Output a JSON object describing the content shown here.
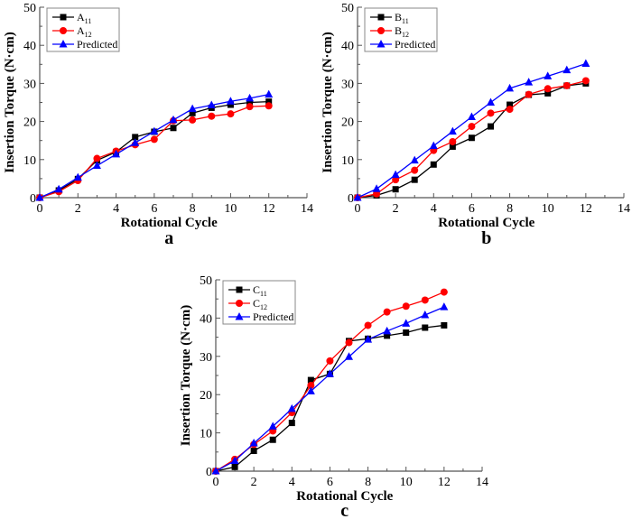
{
  "chart_data": [
    {
      "type": "line",
      "panel_label": "a",
      "xlabel": "Rotational Cycle",
      "ylabel": "Insertion Torque (N·cm)",
      "xlim": [
        0,
        14
      ],
      "ylim": [
        0,
        50
      ],
      "xticks": [
        0,
        2,
        4,
        6,
        8,
        10,
        12,
        14
      ],
      "yticks": [
        0,
        10,
        20,
        30,
        40,
        50
      ],
      "legend_position": "top-left",
      "x": [
        0,
        1,
        2,
        3,
        4,
        5,
        6,
        7,
        8,
        9,
        10,
        11,
        12
      ],
      "series": [
        {
          "name": "A11",
          "base": "A",
          "sub": "11",
          "color": "#000000",
          "marker": "square",
          "values": [
            0,
            1.9,
            4.9,
            9.8,
            12.0,
            15.9,
            17.3,
            18.3,
            22.2,
            23.6,
            24.4,
            25.0,
            25.2
          ]
        },
        {
          "name": "A12",
          "base": "A",
          "sub": "12",
          "color": "#ff0000",
          "marker": "circle",
          "values": [
            0,
            1.6,
            4.5,
            10.3,
            12.2,
            13.9,
            15.3,
            20.2,
            20.4,
            21.4,
            22.0,
            23.9,
            24.1
          ]
        },
        {
          "name": "Predicted",
          "base": "Predicted",
          "sub": "",
          "color": "#0000ff",
          "marker": "triangle",
          "values": [
            0,
            2.2,
            5.3,
            8.4,
            11.4,
            14.4,
            17.4,
            20.4,
            23.3,
            24.3,
            25.3,
            26.1,
            27.1
          ]
        }
      ]
    },
    {
      "type": "line",
      "panel_label": "b",
      "xlabel": "Rotational Cycle",
      "ylabel": "Insertion Torque (N·cm)",
      "xlim": [
        0,
        14
      ],
      "ylim": [
        0,
        50
      ],
      "xticks": [
        0,
        2,
        4,
        6,
        8,
        10,
        12,
        14
      ],
      "yticks": [
        0,
        10,
        20,
        30,
        40,
        50
      ],
      "legend_position": "top-left",
      "x": [
        0,
        1,
        2,
        3,
        4,
        5,
        6,
        7,
        8,
        9,
        10,
        11,
        12
      ],
      "series": [
        {
          "name": "B11",
          "base": "B",
          "sub": "11",
          "color": "#000000",
          "marker": "square",
          "values": [
            0,
            0.6,
            2.2,
            4.7,
            8.7,
            13.4,
            15.7,
            18.7,
            24.4,
            27.0,
            27.4,
            29.4,
            30.0
          ]
        },
        {
          "name": "B12",
          "base": "B",
          "sub": "12",
          "color": "#ff0000",
          "marker": "circle",
          "values": [
            0,
            1.0,
            4.7,
            7.2,
            12.4,
            14.7,
            18.7,
            22.2,
            23.2,
            27.1,
            28.6,
            29.4,
            30.7
          ]
        },
        {
          "name": "Predicted",
          "base": "Predicted",
          "sub": "",
          "color": "#0000ff",
          "marker": "triangle",
          "values": [
            0,
            2.3,
            6.0,
            9.8,
            13.6,
            17.4,
            21.2,
            25.0,
            28.7,
            30.3,
            31.9,
            33.5,
            35.2
          ]
        }
      ]
    },
    {
      "type": "line",
      "panel_label": "c",
      "xlabel": "Rotational Cycle",
      "ylabel": "Insertion Torque (N·cm)",
      "xlim": [
        0,
        14
      ],
      "ylim": [
        0,
        50
      ],
      "xticks": [
        0,
        2,
        4,
        6,
        8,
        10,
        12,
        14
      ],
      "yticks": [
        0,
        10,
        20,
        30,
        40,
        50
      ],
      "legend_position": "top-left",
      "x": [
        0,
        1,
        2,
        3,
        4,
        5,
        6,
        7,
        8,
        9,
        10,
        11,
        12
      ],
      "series": [
        {
          "name": "C11",
          "base": "C",
          "sub": "11",
          "color": "#000000",
          "marker": "square",
          "values": [
            0,
            1.1,
            5.3,
            8.2,
            12.6,
            23.8,
            25.4,
            34.0,
            34.6,
            35.4,
            36.2,
            37.5,
            38.1
          ]
        },
        {
          "name": "C12",
          "base": "C",
          "sub": "12",
          "color": "#ff0000",
          "marker": "circle",
          "values": [
            0,
            3.1,
            7.0,
            10.5,
            15.3,
            22.4,
            28.8,
            33.6,
            38.1,
            41.6,
            43.1,
            44.7,
            46.8
          ]
        },
        {
          "name": "Predicted",
          "base": "Predicted",
          "sub": "",
          "color": "#0000ff",
          "marker": "triangle",
          "values": [
            0,
            2.7,
            7.3,
            11.7,
            16.3,
            20.9,
            25.4,
            29.9,
            34.4,
            36.6,
            38.6,
            40.8,
            42.9
          ]
        }
      ]
    }
  ]
}
